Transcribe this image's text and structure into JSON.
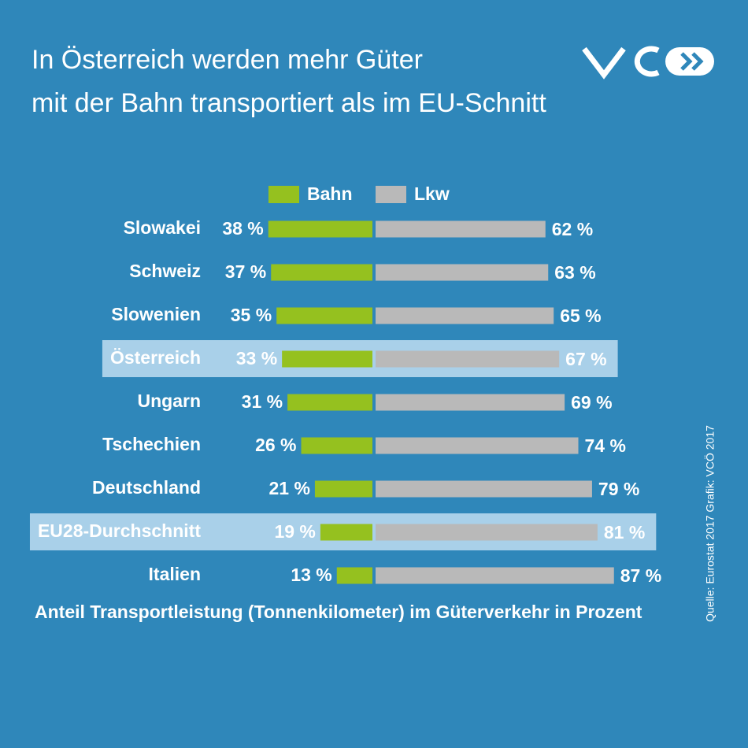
{
  "chart_data": {
    "type": "diverging-bar",
    "title": [
      "In Österreich werden mehr Güter",
      "mit der Bahn transportiert als im EU-Schnitt"
    ],
    "categories": [
      "Slowakei",
      "Schweiz",
      "Slowenien",
      "Österreich",
      "Ungarn",
      "Tschechien",
      "Deutschland",
      "EU28-Durchschnitt",
      "Italien"
    ],
    "series": [
      {
        "name": "Bahn",
        "color": "#95c11f",
        "values": [
          38,
          37,
          35,
          33,
          31,
          26,
          21,
          19,
          13
        ],
        "value_labels": [
          "38 %",
          "37 %",
          "35 %",
          "33 %",
          "31 %",
          "26 %",
          "21 %",
          "19 %",
          "13 %"
        ]
      },
      {
        "name": "Lkw",
        "color": "#b9b9b9",
        "values": [
          62,
          63,
          65,
          67,
          69,
          74,
          79,
          81,
          87
        ],
        "value_labels": [
          "62 %",
          "63 %",
          "65 %",
          "67 %",
          "69 %",
          "74 %",
          "79 %",
          "81 %",
          "87 %"
        ]
      }
    ],
    "highlight": [
      3,
      7
    ],
    "xlabel": "Anteil Transportleistung (Tonnenkilometer) im Güterverkehr in Prozent",
    "source": "Quelle: Eurostat 2017 Grafik: VCÖ 2017"
  }
}
